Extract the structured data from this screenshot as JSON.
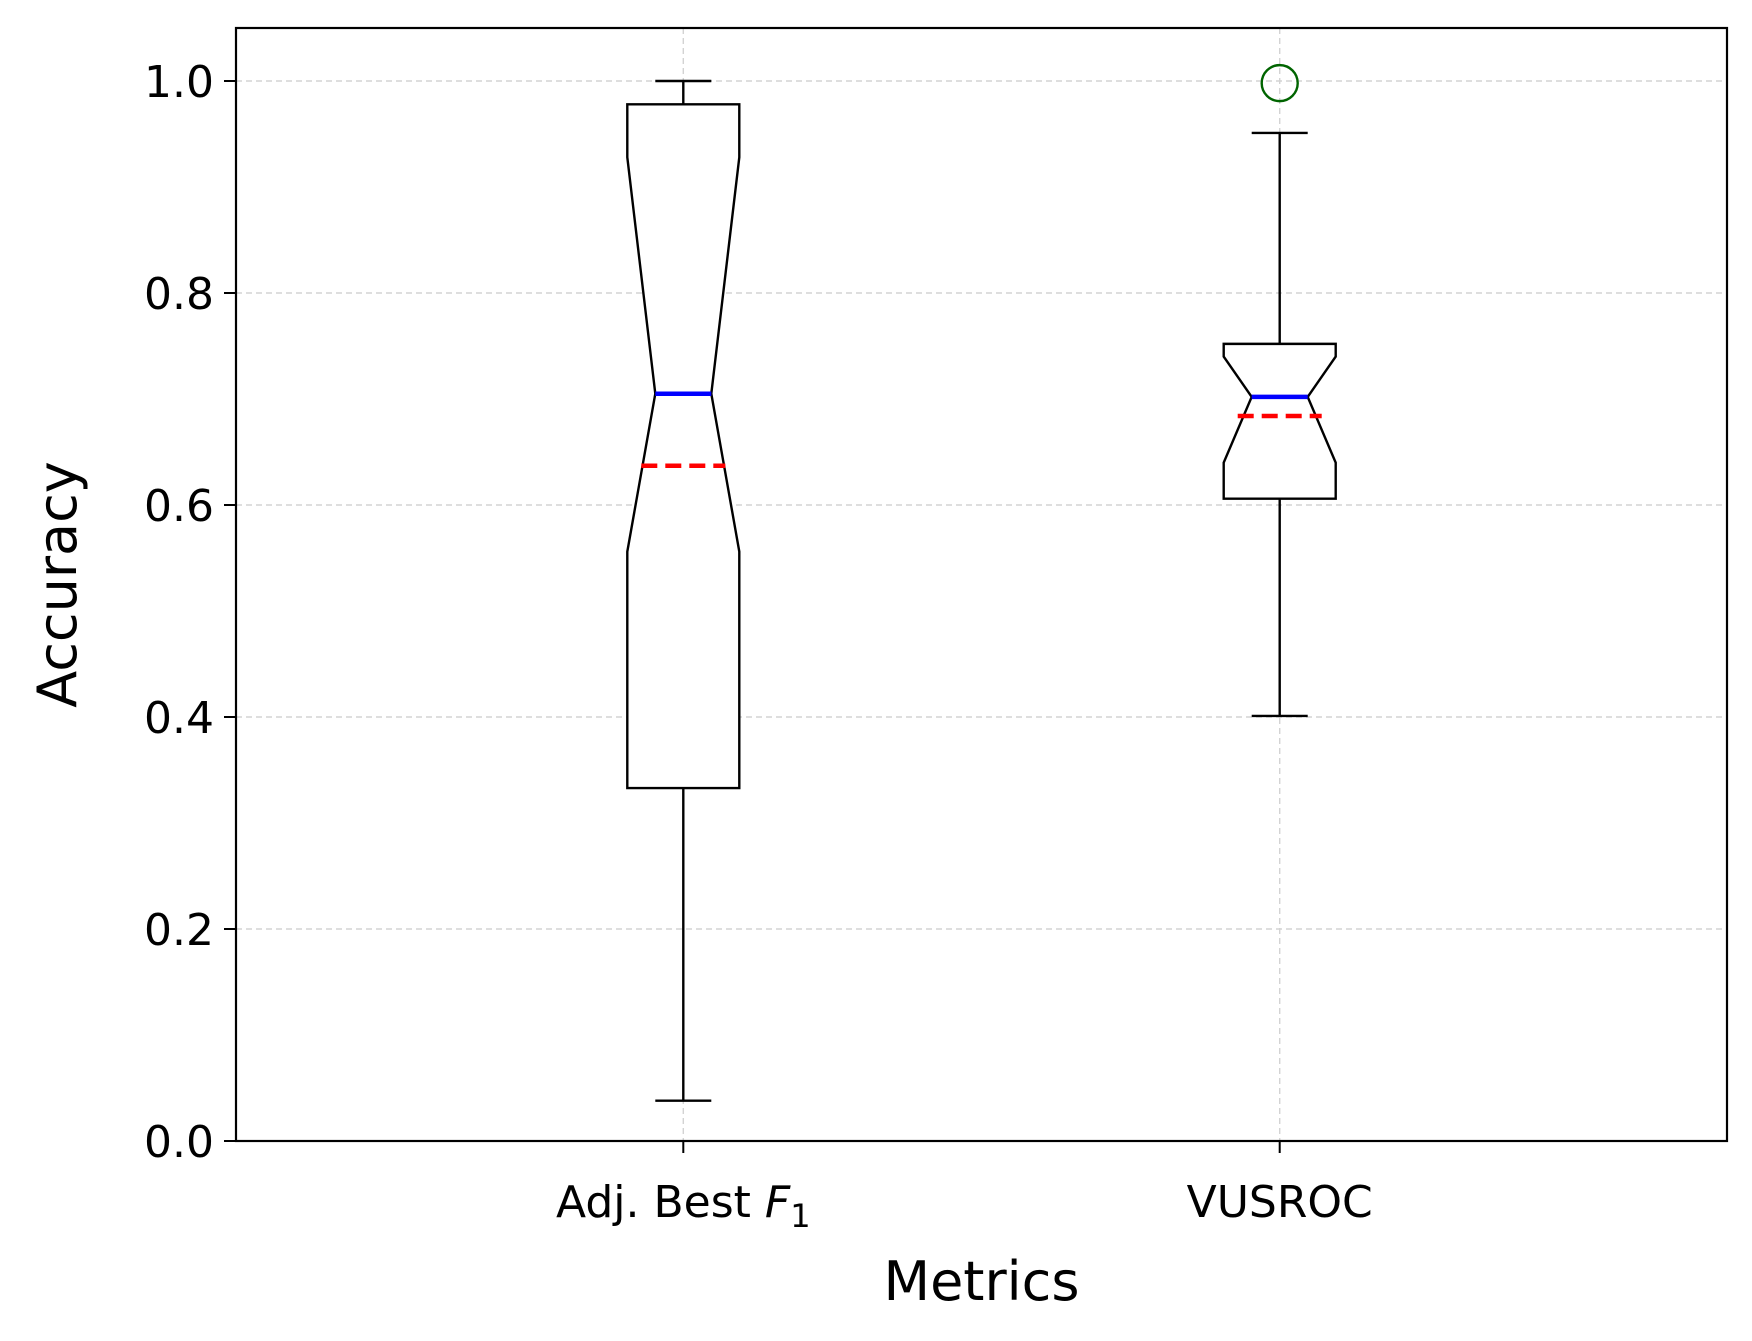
{
  "chart_data": {
    "type": "boxplot",
    "xlabel": "Metrics",
    "ylabel": "Accuracy",
    "ylim": [
      0,
      1.05
    ],
    "yticks": [
      "0.0",
      "0.2",
      "0.4",
      "0.6",
      "0.8",
      "1.0"
    ],
    "grid": true,
    "notched": true,
    "categories": [
      {
        "label_main": "Adj. Best ",
        "label_italic": "F",
        "label_sub": "1"
      },
      {
        "label_main": "VUSROC",
        "label_italic": "",
        "label_sub": ""
      }
    ],
    "boxes": [
      {
        "whisker_low": 0.038,
        "q1": 0.333,
        "median": 0.705,
        "q3": 0.978,
        "whisker_high": 1.0,
        "notch_low": 0.556,
        "notch_high": 0.928,
        "mean": 0.637,
        "outliers": []
      },
      {
        "whisker_low": 0.401,
        "q1": 0.606,
        "median": 0.702,
        "q3": 0.752,
        "whisker_high": 0.951,
        "notch_low": 0.64,
        "notch_high": 0.74,
        "mean": 0.684,
        "outliers": [
          0.998
        ]
      }
    ],
    "colors": {
      "box": "#000000",
      "median": "#0000ff",
      "mean": "#ff0000",
      "outlier": "#006400",
      "grid": "#d3d3d3"
    }
  }
}
